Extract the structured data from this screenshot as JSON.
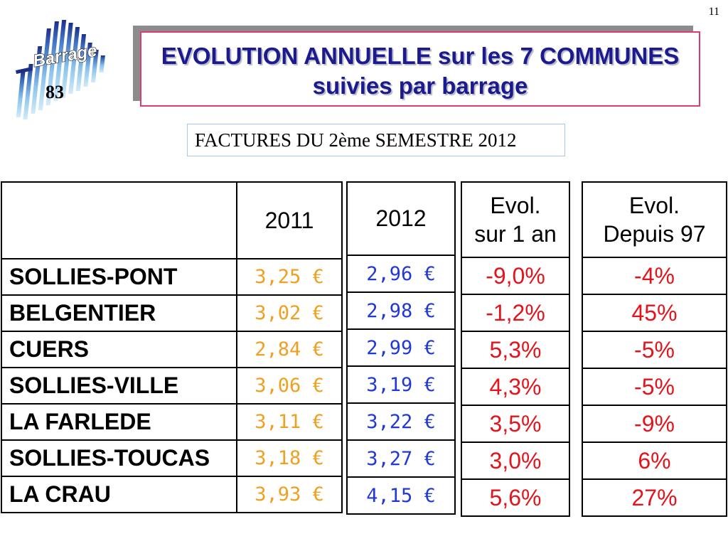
{
  "page_number": "11",
  "logo": {
    "name": "Barrage",
    "number": "83"
  },
  "title": {
    "line1": "EVOLUTION ANNUELLE sur les 7 COMMUNES",
    "line2": "suivies par barrage"
  },
  "subtitle": "FACTURES DU 2ème SEMESTRE 2012",
  "table_2011": {
    "header": "2011",
    "rows": [
      {
        "commune": "SOLLIES-PONT",
        "price": "3,25 €"
      },
      {
        "commune": "BELGENTIER",
        "price": "3,02 €"
      },
      {
        "commune": "CUERS",
        "price": "2,84 €"
      },
      {
        "commune": "SOLLIES-VILLE",
        "price": "3,06 €"
      },
      {
        "commune": "LA FARLEDE",
        "price": "3,11 €"
      },
      {
        "commune": "SOLLIES-TOUCAS",
        "price": "3,18 €"
      },
      {
        "commune": "LA CRAU",
        "price": "3,93 €"
      }
    ]
  },
  "table_2012": {
    "header": "2012",
    "prices": [
      "2,96 €",
      "2,98 €",
      "2,99 €",
      "3,19 €",
      "3,22 €",
      "3,27 €",
      "4,15 €"
    ]
  },
  "table_evol_1an": {
    "header_line1": "Evol.",
    "header_line2": "sur 1 an",
    "values": [
      "-9,0%",
      "-1,2%",
      "5,3%",
      "4,3%",
      "3,5%",
      "3,0%",
      "5,6%"
    ]
  },
  "table_evol_97": {
    "header_line1": "Evol.",
    "header_line2": "Depuis 97",
    "values": [
      "-4%",
      "45%",
      "-5%",
      "-5%",
      "-9%",
      "6%",
      "27%"
    ]
  },
  "colors": {
    "title_text": "#1b1b8f",
    "title_border": "#dc3c72",
    "title_shadow_box": "#8c8c8c",
    "subtitle_border": "#a9c7e8",
    "price_2011": "#f0a020",
    "price_2012": "#2038d8",
    "evolution": "#e5131b"
  }
}
